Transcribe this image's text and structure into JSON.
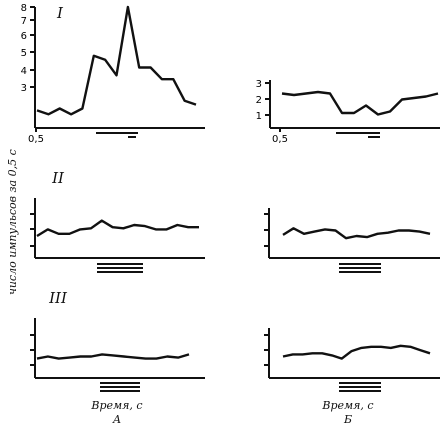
{
  "figure": {
    "ylabel": "число импульсов за 0,5 с",
    "col_a_label": "Время, с\nА",
    "col_b_label": "Время, с\nБ"
  },
  "chart_data": [
    {
      "type": "line",
      "id": "I-A",
      "row_label": "I",
      "column": "А",
      "y_ticks": [
        "3",
        "4",
        "5",
        "6",
        "7",
        "8"
      ],
      "x_ticks": [
        "0,5"
      ],
      "ylim": [
        2,
        8.2
      ],
      "x": [
        0,
        1,
        2,
        3,
        4,
        5,
        6,
        7,
        8,
        9,
        10,
        11,
        12,
        13,
        14
      ],
      "values": [
        2.9,
        2.7,
        3.0,
        2.7,
        3.0,
        5.7,
        5.5,
        4.7,
        8.2,
        5.1,
        5.1,
        4.5,
        4.5,
        3.4,
        3.2
      ],
      "stimulus_bars": 2
    },
    {
      "type": "line",
      "id": "I-B",
      "row_label": "",
      "column": "Б",
      "y_ticks": [
        "1",
        "2",
        "3"
      ],
      "x_ticks": [
        "0,5"
      ],
      "ylim": [
        0,
        3
      ],
      "x": [
        0,
        1,
        2,
        3,
        4,
        5,
        6,
        7,
        8,
        9,
        10,
        11,
        12,
        13
      ],
      "values": [
        2.3,
        2.2,
        2.3,
        2.4,
        2.3,
        1.0,
        1.0,
        1.5,
        0.9,
        1.1,
        1.9,
        2.0,
        2.1,
        2.3
      ],
      "stimulus_bars": 2
    },
    {
      "type": "line",
      "id": "II-A",
      "row_label": "II",
      "column": "А",
      "y_tick_count": 3,
      "x": [
        0,
        1,
        2,
        3,
        4,
        5,
        6,
        7,
        8,
        9,
        10,
        11,
        12,
        13,
        14,
        15
      ],
      "values": [
        2.0,
        2.6,
        2.2,
        2.2,
        2.6,
        2.7,
        3.4,
        2.8,
        2.7,
        3.0,
        2.9,
        2.6,
        2.6,
        3.0,
        2.8,
        2.8
      ],
      "ylim": [
        0,
        4
      ],
      "stimulus_bars": 3
    },
    {
      "type": "line",
      "id": "II-B",
      "row_label": "",
      "column": "Б",
      "y_tick_count": 3,
      "x": [
        0,
        1,
        2,
        3,
        4,
        5,
        6,
        7,
        8,
        9,
        10,
        11,
        12,
        13,
        14
      ],
      "values": [
        2.1,
        2.7,
        2.2,
        2.4,
        2.6,
        2.5,
        1.8,
        2.0,
        1.9,
        2.2,
        2.3,
        2.5,
        2.5,
        2.4,
        2.2
      ],
      "ylim": [
        0,
        4
      ],
      "stimulus_bars": 3
    },
    {
      "type": "line",
      "id": "III-A",
      "row_label": "III",
      "column": "А",
      "y_tick_count": 3,
      "x": [
        0,
        1,
        2,
        3,
        4,
        5,
        6,
        7,
        8,
        9,
        10,
        11,
        12,
        13,
        14
      ],
      "values": [
        1.8,
        2.0,
        1.8,
        1.9,
        2.0,
        2.0,
        2.2,
        2.1,
        2.0,
        1.9,
        1.8,
        1.8,
        2.0,
        1.9,
        2.2
      ],
      "ylim": [
        0,
        4
      ],
      "stimulus_bars": 3
    },
    {
      "type": "line",
      "id": "III-B",
      "row_label": "",
      "column": "Б",
      "y_tick_count": 3,
      "x": [
        0,
        1,
        2,
        3,
        4,
        5,
        6,
        7,
        8,
        9,
        10,
        11,
        12,
        13,
        14,
        15
      ],
      "values": [
        2.0,
        2.2,
        2.2,
        2.3,
        2.3,
        2.1,
        1.8,
        2.5,
        2.8,
        2.9,
        2.9,
        2.8,
        3.0,
        2.9,
        2.6,
        2.3
      ],
      "ylim": [
        0,
        4
      ],
      "stimulus_bars": 3
    }
  ]
}
